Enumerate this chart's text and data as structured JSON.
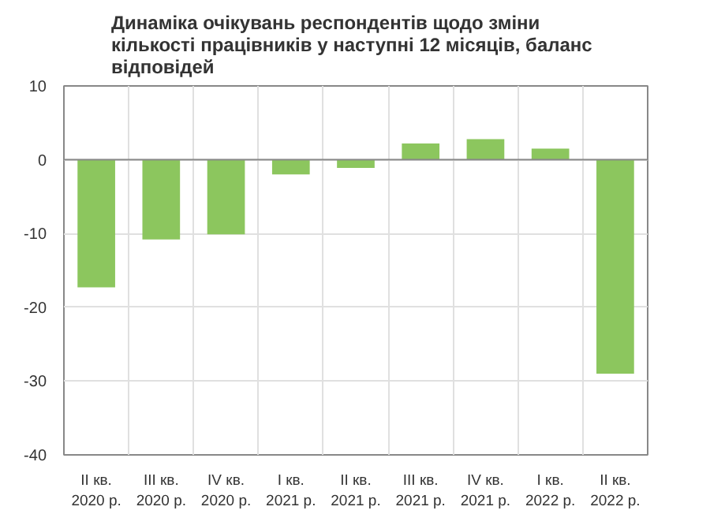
{
  "chart_data": {
    "type": "bar",
    "title": "Динаміка очікувань респондентів щодо зміни\nкількості працівників у наступні 12 місяців, баланс\nвідповідей",
    "categories": [
      "II кв.\n2020 р.",
      "III кв.\n2020 р.",
      "IV кв.\n2020 р.",
      "I кв.\n2021 р.",
      "II кв.\n2021 р.",
      "III кв.\n2021 р.",
      "IV кв.\n2021 р.",
      "I кв.\n2022 р.",
      "II кв.\n2022 р."
    ],
    "values": [
      -17.3,
      -10.8,
      -10.1,
      -2.0,
      -1.1,
      2.2,
      2.8,
      1.5,
      -29.0
    ],
    "color": "#8cc65e",
    "ylim": [
      -40,
      10
    ],
    "yticks": [
      -40,
      -30,
      -20,
      -10,
      0,
      10
    ],
    "grid": true
  }
}
